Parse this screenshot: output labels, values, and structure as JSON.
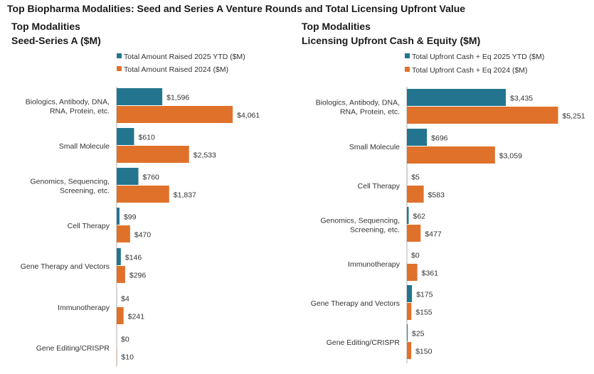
{
  "title": "Top Biopharma Modalities: Seed and Series A Venture Rounds and Total Licensing Upfront Value",
  "colors": {
    "series_2025": "#23758f",
    "series_2024": "#e0712b"
  },
  "chart_data": [
    {
      "type": "bar",
      "orientation": "horizontal",
      "subtitle_lines": [
        "Top Modalities",
        "Seed-Series A ($M)"
      ],
      "categories": [
        [
          "Biologics, Antibody, DNA,",
          "RNA, Protein, etc."
        ],
        [
          "Small Molecule"
        ],
        [
          "Genomics, Sequencing,",
          "Screening, etc."
        ],
        [
          "Cell Therapy"
        ],
        [
          "Gene Therapy and Vectors"
        ],
        [
          "Immunotherapy"
        ],
        [
          "Gene Editing/CRISPR"
        ]
      ],
      "series": [
        {
          "name": "Total Amount Raised 2025 YTD ($M)",
          "values": [
            1596,
            610,
            760,
            99,
            146,
            4,
            0
          ],
          "labels": [
            "$1,596",
            "$610",
            "$760",
            "$99",
            "$146",
            "$4",
            "$0"
          ]
        },
        {
          "name": "Total Amount Raised 2024 ($M)",
          "values": [
            4061,
            2533,
            1837,
            470,
            296,
            241,
            10
          ],
          "labels": [
            "$4,061",
            "$2,533",
            "$1,837",
            "$470",
            "$296",
            "$241",
            "$10"
          ]
        }
      ],
      "xlim": [
        0,
        4400
      ]
    },
    {
      "type": "bar",
      "orientation": "horizontal",
      "subtitle_lines": [
        "Top Modalities",
        "Licensing Upfront Cash & Equity ($M)"
      ],
      "categories": [
        [
          "Biologics, Antibody, DNA,",
          "RNA, Protein, etc."
        ],
        [
          "Small Molecule"
        ],
        [
          "Cell Therapy"
        ],
        [
          "Genomics, Sequencing,",
          "Screening, etc."
        ],
        [
          "Immunotherapy"
        ],
        [
          "Gene Therapy and Vectors"
        ],
        [
          "Gene Editing/CRISPR"
        ]
      ],
      "series": [
        {
          "name": "Total Upfront Cash + Eq 2025 YTD ($M)",
          "values": [
            3435,
            696,
            5,
            62,
            0,
            175,
            25
          ],
          "labels": [
            "$3,435",
            "$696",
            "$5",
            "$62",
            "$0",
            "$175",
            "$25"
          ]
        },
        {
          "name": "Total Upfront Cash + Eq 2024 ($M)",
          "values": [
            5251,
            3059,
            583,
            477,
            361,
            155,
            150
          ],
          "labels": [
            "$5,251",
            "$3,059",
            "$583",
            "$477",
            "$361",
            "$155",
            "$150"
          ]
        }
      ],
      "xlim": [
        0,
        5400
      ]
    }
  ]
}
